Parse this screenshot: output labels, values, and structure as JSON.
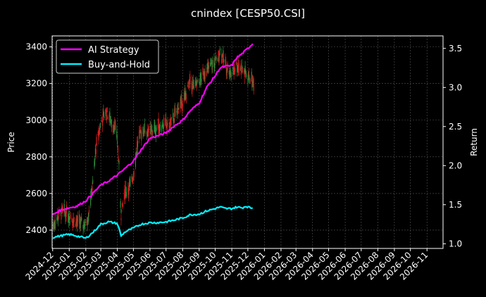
{
  "chart_data": {
    "type": "candlestick-line",
    "title": "cnindex [CESP50.CSI]",
    "ylabel_left": "Price",
    "ylabel_right": "Return",
    "ylim_left": [
      2300,
      3460
    ],
    "ylim_right": [
      0.94,
      3.66
    ],
    "x_tick_labels": [
      "2024-12",
      "2025-01",
      "2025-02",
      "2025-03",
      "2025-04",
      "2025-05",
      "2025-06",
      "2025-07",
      "2025-08",
      "2025-09",
      "2025-10",
      "2025-11",
      "2025-12",
      "2026-01",
      "2026-02",
      "2026-03",
      "2026-04",
      "2026-05",
      "2026-06",
      "2026-07",
      "2026-08",
      "2026-09",
      "2026-10",
      "2026-11"
    ],
    "y_ticks_left": [
      2400,
      2600,
      2800,
      3000,
      3200,
      3400
    ],
    "y_ticks_right": [
      1.0,
      1.5,
      2.0,
      2.5,
      3.0,
      3.5
    ],
    "grid": true,
    "legend_position": "top-left",
    "colors": {
      "background": "#000000",
      "up": "#2e8b3a",
      "down": "#d21f1f",
      "ai": "#ff00ff",
      "bh": "#00f0ff",
      "grid": "#555555",
      "axis": "#ffffff"
    },
    "price_path": [
      [
        "2024-12-01",
        2420
      ],
      [
        "2024-12-10",
        2470
      ],
      [
        "2024-12-20",
        2500
      ],
      [
        "2025-01-01",
        2480
      ],
      [
        "2025-01-10",
        2450
      ],
      [
        "2025-01-20",
        2440
      ],
      [
        "2025-01-31",
        2430
      ],
      [
        "2025-02-05",
        2470
      ],
      [
        "2025-02-14",
        2650
      ],
      [
        "2025-02-20",
        2850
      ],
      [
        "2025-03-01",
        2980
      ],
      [
        "2025-03-10",
        3050
      ],
      [
        "2025-03-20",
        3000
      ],
      [
        "2025-03-31",
        2930
      ],
      [
        "2025-04-05",
        2700
      ],
      [
        "2025-04-08",
        2480
      ],
      [
        "2025-04-15",
        2600
      ],
      [
        "2025-04-25",
        2640
      ],
      [
        "2025-05-01",
        2700
      ],
      [
        "2025-05-10",
        2900
      ],
      [
        "2025-05-20",
        2950
      ],
      [
        "2025-06-01",
        2930
      ],
      [
        "2025-06-15",
        2960
      ],
      [
        "2025-06-25",
        2980
      ],
      [
        "2025-07-05",
        2960
      ],
      [
        "2025-07-15",
        3010
      ],
      [
        "2025-07-25",
        3070
      ],
      [
        "2025-08-05",
        3120
      ],
      [
        "2025-08-15",
        3200
      ],
      [
        "2025-08-25",
        3180
      ],
      [
        "2025-09-05",
        3230
      ],
      [
        "2025-09-15",
        3280
      ],
      [
        "2025-09-25",
        3300
      ],
      [
        "2025-10-05",
        3330
      ],
      [
        "2025-10-10",
        3380
      ],
      [
        "2025-10-20",
        3300
      ],
      [
        "2025-10-31",
        3250
      ],
      [
        "2025-11-10",
        3300
      ],
      [
        "2025-11-20",
        3280
      ],
      [
        "2025-11-28",
        3250
      ],
      [
        "2025-12-05",
        3230
      ],
      [
        "2025-12-12",
        3200
      ]
    ],
    "series": [
      {
        "name": "AI Strategy",
        "points": [
          [
            "2024-12-01",
            1.37
          ],
          [
            "2024-12-15",
            1.43
          ],
          [
            "2025-01-01",
            1.46
          ],
          [
            "2025-01-15",
            1.48
          ],
          [
            "2025-02-01",
            1.55
          ],
          [
            "2025-02-15",
            1.65
          ],
          [
            "2025-03-01",
            1.75
          ],
          [
            "2025-03-15",
            1.8
          ],
          [
            "2025-04-01",
            1.88
          ],
          [
            "2025-04-15",
            1.96
          ],
          [
            "2025-05-01",
            2.06
          ],
          [
            "2025-05-15",
            2.2
          ],
          [
            "2025-06-01",
            2.35
          ],
          [
            "2025-06-15",
            2.38
          ],
          [
            "2025-07-01",
            2.42
          ],
          [
            "2025-07-15",
            2.5
          ],
          [
            "2025-08-01",
            2.58
          ],
          [
            "2025-08-15",
            2.7
          ],
          [
            "2025-09-01",
            2.8
          ],
          [
            "2025-09-15",
            3.0
          ],
          [
            "2025-10-01",
            3.15
          ],
          [
            "2025-10-10",
            3.25
          ],
          [
            "2025-10-20",
            3.27
          ],
          [
            "2025-11-01",
            3.28
          ],
          [
            "2025-11-10",
            3.38
          ],
          [
            "2025-11-20",
            3.43
          ],
          [
            "2025-12-01",
            3.5
          ],
          [
            "2025-12-10",
            3.56
          ]
        ]
      },
      {
        "name": "Buy-and-Hold",
        "points": [
          [
            "2024-12-01",
            1.08
          ],
          [
            "2024-12-15",
            1.1
          ],
          [
            "2025-01-01",
            1.12
          ],
          [
            "2025-01-15",
            1.1
          ],
          [
            "2025-02-01",
            1.07
          ],
          [
            "2025-02-15",
            1.15
          ],
          [
            "2025-03-01",
            1.25
          ],
          [
            "2025-03-15",
            1.28
          ],
          [
            "2025-04-01",
            1.26
          ],
          [
            "2025-04-06",
            1.15
          ],
          [
            "2025-04-08",
            1.1
          ],
          [
            "2025-04-15",
            1.15
          ],
          [
            "2025-05-01",
            1.2
          ],
          [
            "2025-05-15",
            1.25
          ],
          [
            "2025-06-01",
            1.27
          ],
          [
            "2025-06-15",
            1.27
          ],
          [
            "2025-07-01",
            1.28
          ],
          [
            "2025-07-15",
            1.3
          ],
          [
            "2025-08-01",
            1.33
          ],
          [
            "2025-08-15",
            1.37
          ],
          [
            "2025-09-01",
            1.38
          ],
          [
            "2025-09-15",
            1.42
          ],
          [
            "2025-10-01",
            1.45
          ],
          [
            "2025-10-10",
            1.47
          ],
          [
            "2025-10-20",
            1.45
          ],
          [
            "2025-11-01",
            1.45
          ],
          [
            "2025-11-10",
            1.47
          ],
          [
            "2025-11-20",
            1.46
          ],
          [
            "2025-11-28",
            1.48
          ],
          [
            "2025-12-05",
            1.46
          ],
          [
            "2025-12-10",
            1.46
          ]
        ]
      }
    ]
  }
}
